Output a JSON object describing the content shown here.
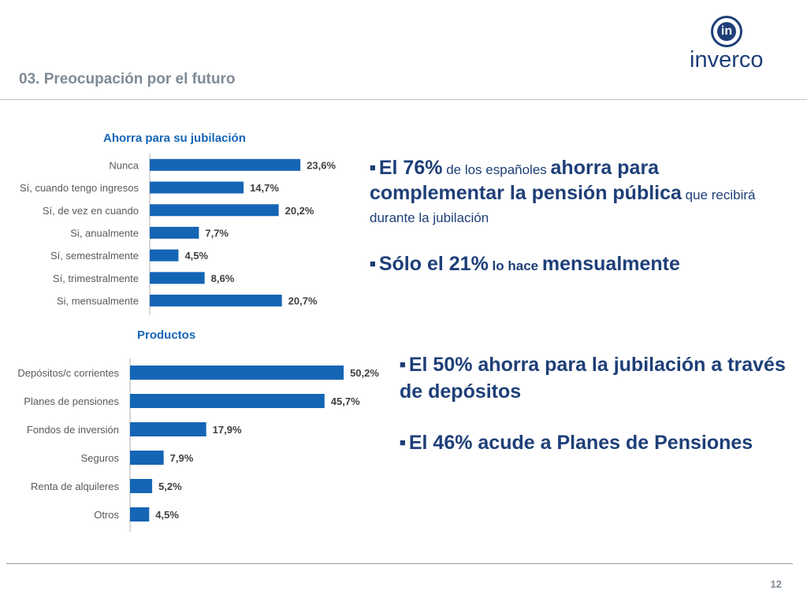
{
  "header": {
    "title": "03. Preocupación por el futuro"
  },
  "logo": {
    "glyph": "in",
    "text": "inverco"
  },
  "footer": {
    "page_number": "12"
  },
  "colors": {
    "bar": "#1565b5",
    "navy": "#1e3f78",
    "grey_title": "#7f8a96"
  },
  "chart_data": [
    {
      "type": "bar",
      "orientation": "horizontal",
      "title": "Ahorra para su jubilación",
      "categories": [
        "Nunca",
        "Sí, cuando tengo ingresos",
        "Sí, de vez en cuando",
        "Si, anualmente",
        "Sí, semestralmente",
        "Sí, trimestralmente",
        "Si, mensualmente"
      ],
      "values": [
        23.6,
        14.7,
        20.2,
        7.7,
        4.5,
        8.6,
        20.7
      ],
      "value_labels": [
        "23,6%",
        "14,7%",
        "20,2%",
        "7,7%",
        "4,5%",
        "8,6%",
        "20,7%"
      ],
      "xlim": [
        0,
        100
      ],
      "grid": false,
      "legend": "none"
    },
    {
      "type": "bar",
      "orientation": "horizontal",
      "title": "Productos",
      "categories": [
        "Depósitos/c corrientes",
        "Planes de pensiones",
        "Fondos de  inversión",
        "Seguros",
        "Renta de alquileres",
        "Otros"
      ],
      "values": [
        50.2,
        45.7,
        17.9,
        7.9,
        5.2,
        4.5
      ],
      "value_labels": [
        "50,2%",
        "45,7%",
        "17,9%",
        "7,9%",
        "5,2%",
        "4,5%"
      ],
      "xlim": [
        0,
        100
      ],
      "grid": false,
      "legend": "none"
    }
  ],
  "bullets_top": {
    "b1": {
      "p1": "El 76%",
      "p2": " de los españoles ",
      "p3": "ahorra para complementar la pensión pública",
      "p4": " que recibirá durante la jubilación"
    },
    "b2": {
      "p1": "Sólo el 21%",
      "p2": " lo hace ",
      "p3": "mensualmente"
    }
  },
  "bullets_bottom": {
    "b1": "El 50% ahorra para la jubilación a través de depósitos",
    "b2": "El 46% acude a Planes de Pensiones"
  }
}
